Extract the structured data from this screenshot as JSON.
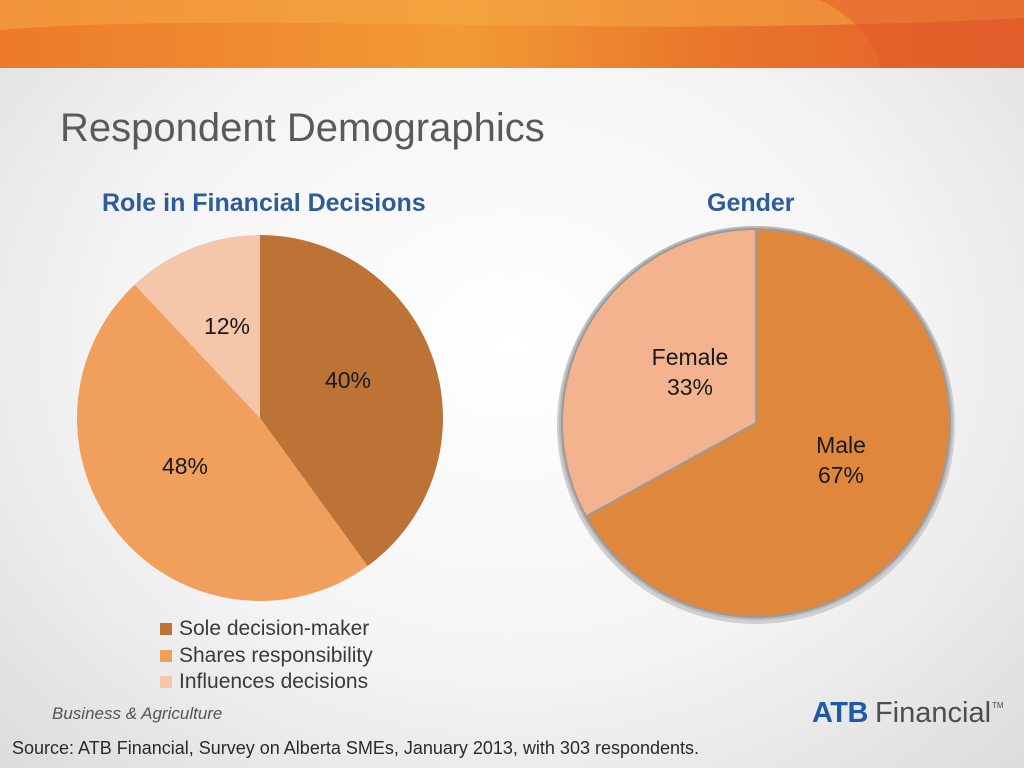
{
  "slide": {
    "title": "Respondent Demographics",
    "division": "Business & Agriculture",
    "source": "Source:  ATB Financial, Survey on Alberta SMEs, January 2013, with 303 respondents.",
    "logo": {
      "brand": "ATB",
      "word": "Financial",
      "tm": "TM"
    }
  },
  "colors": {
    "banner": "#e8741f",
    "title": "#2e5b9a"
  },
  "chart_data": [
    {
      "type": "pie",
      "title": "Role in Financial Decisions",
      "slices": [
        {
          "label": "Sole decision-maker",
          "value": 40,
          "display": "40%",
          "color": "#bd7335"
        },
        {
          "label": "Shares responsibility",
          "value": 48,
          "display": "48%",
          "color": "#f0a05c"
        },
        {
          "label": "Influences decisions",
          "value": 12,
          "display": "12%",
          "color": "#f4c6aa"
        }
      ],
      "legend": "bottom"
    },
    {
      "type": "pie",
      "title": "Gender",
      "slices": [
        {
          "label": "Male",
          "value": 67,
          "display": "67%",
          "color": "#e0873e"
        },
        {
          "label": "Female",
          "value": 33,
          "display": "33%",
          "color": "#f4b38f"
        }
      ],
      "legend": "none"
    }
  ]
}
